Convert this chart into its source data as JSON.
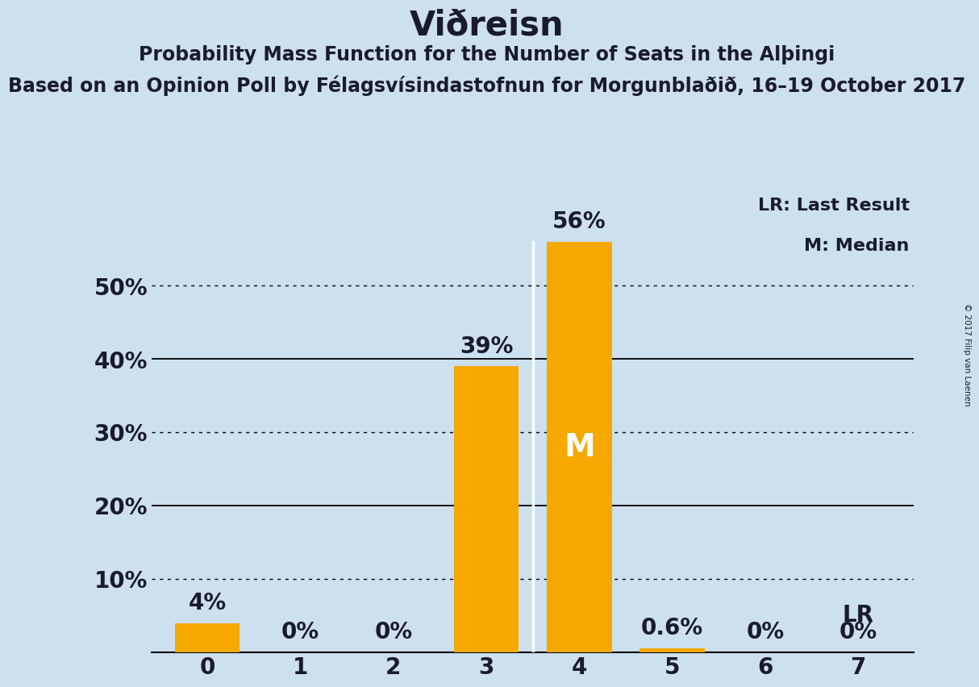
{
  "title": "Viðreisn",
  "subtitle1": "Probability Mass Function for the Number of Seats in the Alþingi",
  "subtitle2": "Based on an Opinion Poll by Félagsvísindastofnun for Morgunblaðið, 16–19 October 2017",
  "copyright": "© 2017 Filip van Laenen",
  "categories": [
    0,
    1,
    2,
    3,
    4,
    5,
    6,
    7
  ],
  "values": [
    4.0,
    0.0,
    0.0,
    39.0,
    56.0,
    0.6,
    0.0,
    0.0
  ],
  "bar_color": "#F5A800",
  "background_color": "#cce0f0",
  "median_bar": 4,
  "last_result_bar": 7,
  "yticks": [
    0,
    10,
    20,
    30,
    40,
    50
  ],
  "ytick_labels": [
    "",
    "10%",
    "20%",
    "30%",
    "40%",
    "50%"
  ],
  "solid_gridlines": [
    20,
    40
  ],
  "dotted_gridlines": [
    10,
    30,
    50
  ],
  "legend_lr": "LR: Last Result",
  "legend_m": "M: Median",
  "bar_labels": [
    "4%",
    "0%",
    "0%",
    "39%",
    "56%",
    "0.6%",
    "0%",
    "0%"
  ],
  "title_fontsize": 30,
  "subtitle1_fontsize": 17,
  "subtitle2_fontsize": 17,
  "axis_tick_fontsize": 20,
  "bar_label_fontsize": 20,
  "legend_fontsize": 16,
  "ylim": [
    0,
    63
  ],
  "bar_width": 0.7,
  "median_line_x": 3.5,
  "median_line_color": "#ffffff"
}
